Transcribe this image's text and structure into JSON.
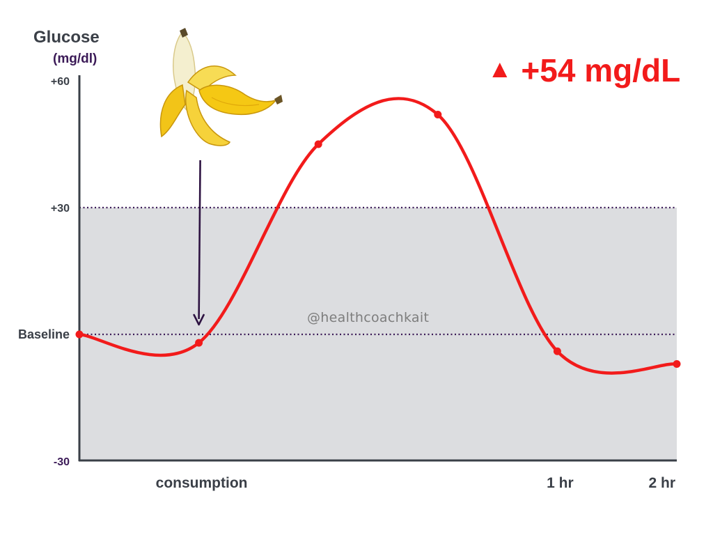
{
  "header": {
    "y_title": "Glucose",
    "y_unit": "(mg/dl)",
    "delta_symbol": "▲",
    "delta_text": "+54 mg/dL"
  },
  "watermark": "@healthcoachkait",
  "colors": {
    "curve": "#f21b1b",
    "band": "#dcdde0",
    "dotted": "#3b1a57",
    "axis": "#3a3f47",
    "arrow": "#2e1342"
  },
  "illustration": {
    "name": "banana-icon",
    "arrow_to_x": 1
  },
  "chart_data": {
    "type": "line",
    "title": "",
    "xlabel": "",
    "ylabel": "Glucose (mg/dl)",
    "x_ticks": [
      {
        "value": 1,
        "label": "consumption"
      },
      {
        "value": 4,
        "label": "1 hr"
      },
      {
        "value": 5.84,
        "label": "2 hr"
      }
    ],
    "y_ticks": [
      {
        "value": 60,
        "label": "+60"
      },
      {
        "value": 30,
        "label": "+30"
      },
      {
        "value": 0,
        "label": "Baseline"
      },
      {
        "value": -30,
        "label": "-30"
      }
    ],
    "xlim": [
      0,
      5
    ],
    "ylim": [
      -30,
      60
    ],
    "reference_lines": [
      0,
      30
    ],
    "band": [
      -30,
      30
    ],
    "series": [
      {
        "values": [
          [
            0,
            0
          ],
          [
            1,
            -2
          ],
          [
            2,
            45
          ],
          [
            3,
            52
          ],
          [
            4,
            -4
          ],
          [
            5,
            -7
          ]
        ]
      }
    ]
  }
}
